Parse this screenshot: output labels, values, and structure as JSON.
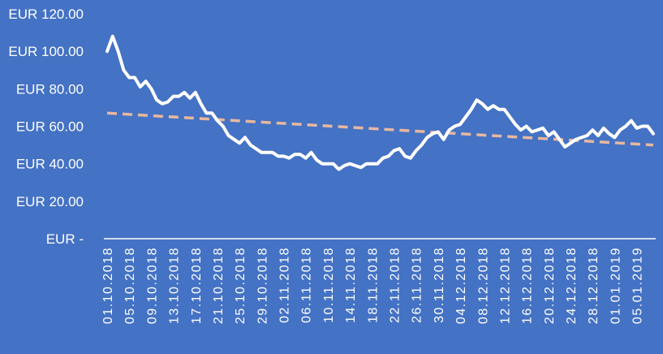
{
  "chart_data": {
    "type": "line",
    "title": "",
    "xlabel": "",
    "ylabel": "",
    "ylim": [
      0,
      120
    ],
    "y_ticks": [
      0,
      20,
      40,
      60,
      80,
      100,
      120
    ],
    "y_tick_labels": [
      "EUR -",
      "EUR 20.00",
      "EUR 40.00",
      "EUR 60.00",
      "EUR 80.00",
      "EUR 100.00",
      "EUR 120.00"
    ],
    "x_tick_labels": [
      "01.10.2018",
      "05.10.2018",
      "09.10.2018",
      "13.10.2018",
      "17.10.2018",
      "21.10.2018",
      "25.10.2018",
      "29.10.2018",
      "02.11.2018",
      "06.11.2018",
      "10.11.2018",
      "14.11.2018",
      "18.11.2018",
      "22.11.2018",
      "26.11.2018",
      "30.11.2018",
      "04.12.2018",
      "08.12.2018",
      "12.12.2018",
      "16.12.2018",
      "20.12.2018",
      "24.12.2018",
      "28.12.2018",
      "01.01.2019",
      "05.01.2019"
    ],
    "x_start": "01.10.2018",
    "x_end": "09.01.2019",
    "grid": false,
    "legend": "none",
    "colors": {
      "background": "#4472C4",
      "series": "#FFFFFF",
      "trend": "#E8B7A0",
      "axis": "#FFFFFF"
    },
    "series": [
      {
        "style": "solid",
        "values": [
          100,
          108,
          100,
          90,
          86,
          86,
          81,
          84,
          80,
          74,
          72,
          73,
          76,
          76,
          78,
          75,
          78,
          72,
          67,
          67,
          63,
          60,
          55,
          53,
          51,
          54,
          50,
          48,
          46,
          46,
          46,
          44,
          44,
          43,
          45,
          45,
          43,
          46,
          42,
          40,
          40,
          40,
          37,
          39,
          40,
          39,
          38,
          40,
          40,
          40,
          43,
          44,
          47,
          48,
          44,
          43,
          47,
          50,
          54,
          56,
          57,
          53,
          58,
          60,
          61,
          65,
          69,
          74,
          72,
          69,
          71,
          69,
          69,
          65,
          61,
          58,
          60,
          57,
          58,
          59,
          55,
          57,
          53,
          49,
          51,
          53,
          54,
          55,
          58,
          55,
          59,
          56,
          54,
          58,
          60,
          63,
          59,
          60,
          60,
          56
        ]
      },
      {
        "style": "dashed",
        "values": [
          67,
          50
        ]
      }
    ]
  }
}
